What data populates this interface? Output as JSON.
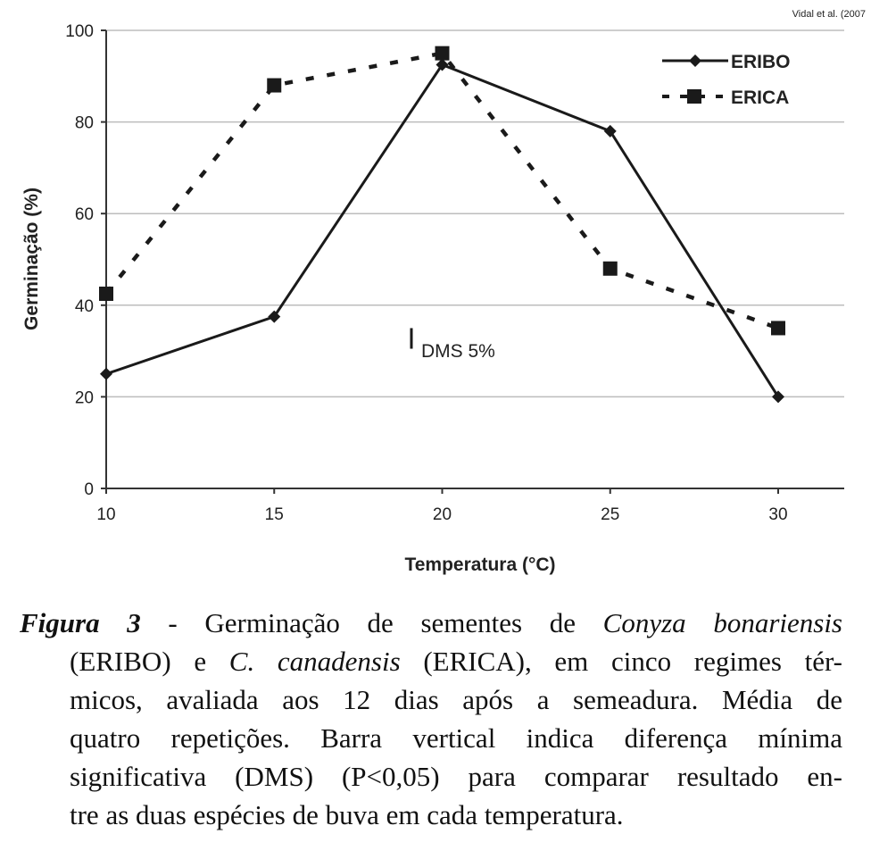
{
  "source_note": "Vidal et al. (2007",
  "chart_data": {
    "type": "line",
    "x": [
      10,
      15,
      20,
      25,
      30
    ],
    "x_ticks": [
      "10",
      "15",
      "20",
      "25",
      "30"
    ],
    "y_ticks": [
      "0",
      "20",
      "40",
      "60",
      "80",
      "100"
    ],
    "xlim": [
      10,
      30
    ],
    "ylim": [
      0,
      100
    ],
    "xlabel": "Temperatura (°C)",
    "ylabel": "Germinação (%)",
    "grid": "horizontal",
    "legend_position": "top-right",
    "series": [
      {
        "name": "ERIBO",
        "values": [
          25,
          37.5,
          92.5,
          78,
          20
        ],
        "line": "solid",
        "marker": "diamond",
        "color": "#1a1a1a"
      },
      {
        "name": "ERICA",
        "values": [
          42.5,
          88,
          95,
          48,
          35
        ],
        "line": "dashed",
        "marker": "square",
        "color": "#1a1a1a"
      }
    ],
    "annotation": {
      "text": "DMS 5%",
      "bar_low": 30.5,
      "bar_high": 35
    }
  },
  "caption": {
    "label": "Figura 3",
    "separator": " - ",
    "l1_text": "Germinação de sementes de",
    "l1_species": "Conyza bonariensis",
    "l2_a": "(ERIBO) e",
    "l2_species": "C. canadensis",
    "l2_b": "(ERICA), em cinco regimes tér-",
    "l3": "micos, avaliada aos 12 dias após a semeadura. Média de",
    "l4": "quatro repetições. Barra vertical indica diferença mínima",
    "l5": "significativa (DMS) (P<0,05) para comparar resultado en-",
    "l6": "tre as duas espécies de buva em cada temperatura."
  }
}
